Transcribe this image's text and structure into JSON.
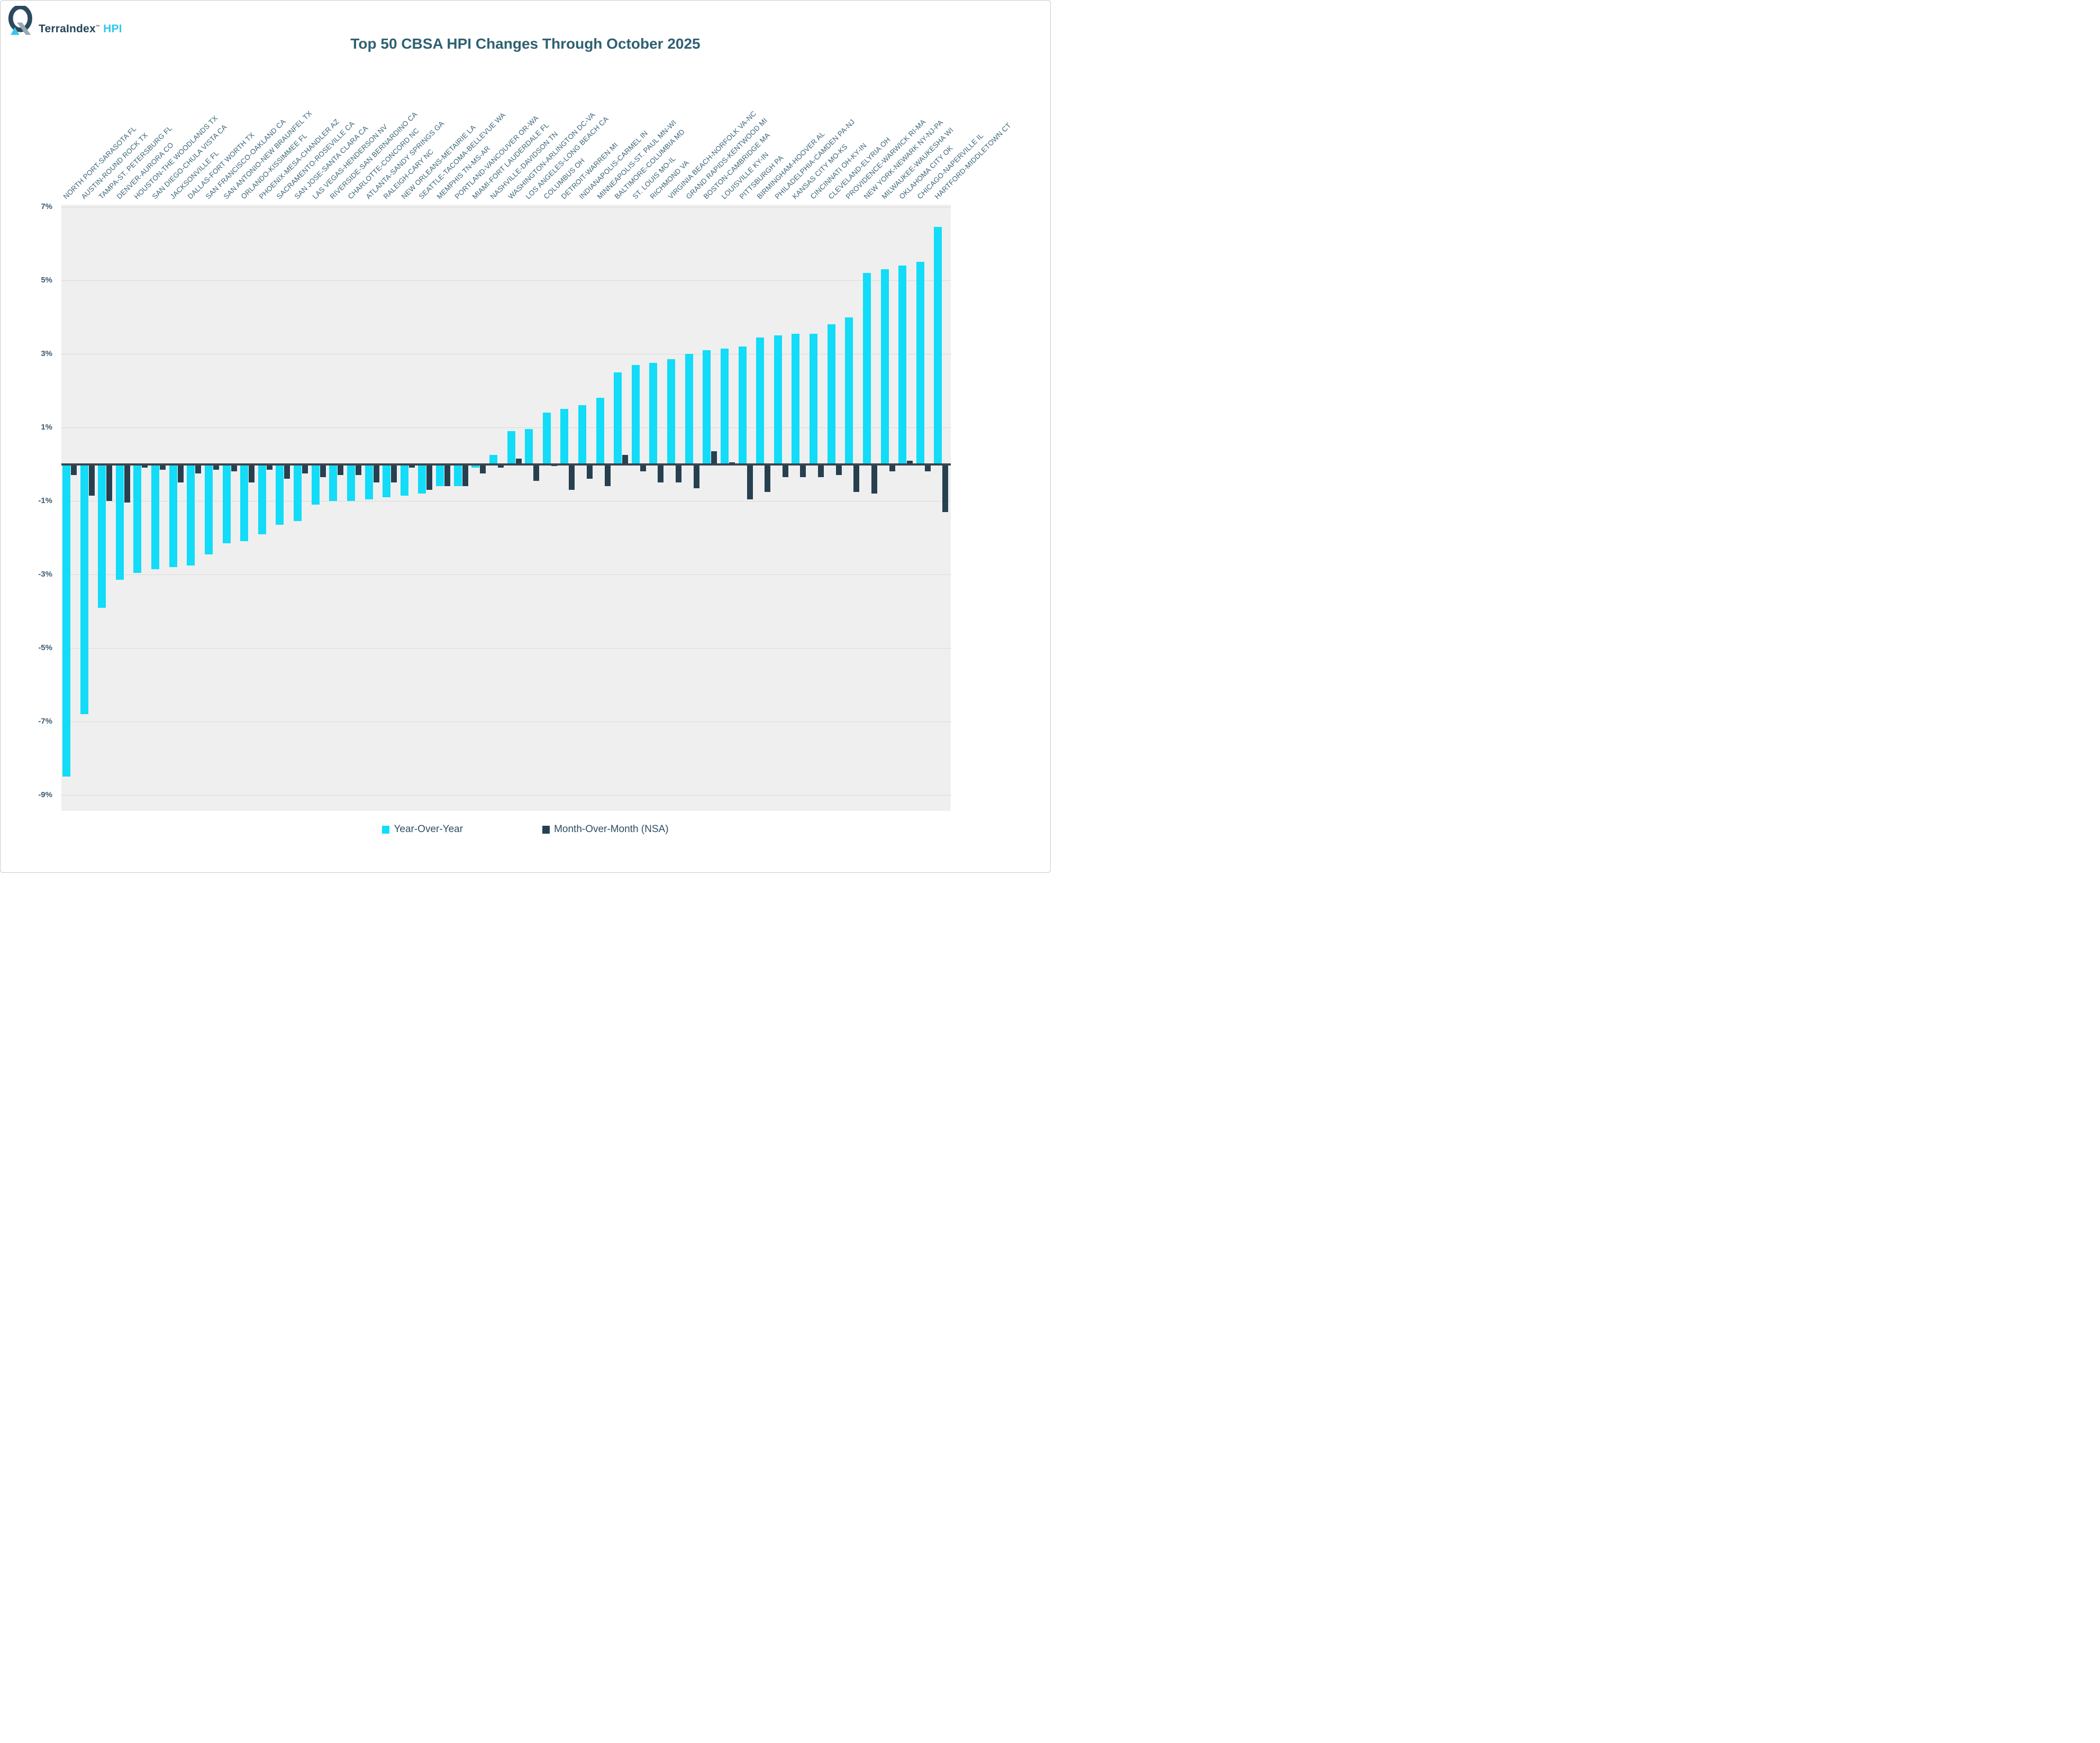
{
  "logo": {
    "brand": "TerraIndex",
    "tm": "TM",
    "suffix": "HPI",
    "icon": "q-triangle-logo",
    "colors": {
      "q": "#2c4a5e",
      "slash": "#98a9b4",
      "triangle": "#35c8ec",
      "text": "#24455a",
      "hpi": "#2ec8f0"
    }
  },
  "title": "Top 50 CBSA HPI Changes Through October 2025",
  "legend": {
    "items": [
      {
        "label": "Year-Over-Year",
        "color": "#12dcf8"
      },
      {
        "label": "Month-Over-Month (NSA)",
        "color": "#264050"
      }
    ]
  },
  "chart_data": {
    "type": "bar",
    "title": "Top 50 CBSA HPI Changes Through October 2025",
    "xlabel": "",
    "ylabel": "",
    "ylim": [
      -9,
      7
    ],
    "yticks": [
      7,
      5,
      3,
      1,
      -1,
      -3,
      -5,
      -7,
      -9
    ],
    "grid": true,
    "legend_position": "bottom",
    "categories": [
      "NORTH PORT-SARASOTA FL",
      "AUSTIN-ROUND ROCK TX",
      "TAMPA-ST. PETERSBURG FL",
      "DENVER-AURORA CO",
      "HOUSTON-THE WOODLANDS TX",
      "SAN DIEGO-CHULA VISTA CA",
      "JACKSONVILLE FL",
      "DALLAS-FORT WORTH TX",
      "SAN FRANCISCO-OAKLAND CA",
      "SAN ANTONIO-NEW BRAUNFEL TX",
      "ORLANDO-KISSIMMEE FL",
      "PHOENIX-MESA-CHANDLER AZ",
      "SACRAMENTO-ROSEVILLE CA",
      "SAN JOSE-SANTA CLARA CA",
      "LAS VEGAS-HENDERSON NV",
      "RIVERSIDE-SAN BERNARDINO CA",
      "CHARLOTTE-CONCORD NC",
      "ATLANTA-SANDY SPRINGS GA",
      "RALEIGH-CARY NC",
      "NEW ORLEANS-METAIRIE LA",
      "SEATTLE-TACOMA-BELLEVUE WA",
      "MEMPHIS TN-MS-AR",
      "PORTLAND-VANCOUVER OR-WA",
      "MIAMI-FORT LAUDERDALE FL",
      "NASHVILLE-DAVIDSON TN",
      "WASHINGTON-ARLINGTON DC-VA",
      "LOS ANGELES-LONG BEACH CA",
      "COLUMBUS OH",
      "DETROIT-WARREN MI",
      "INDIANAPOLIS-CARMEL IN",
      "MINNEAPOLIS-ST. PAUL MN-WI",
      "BALTIMORE-COLUMBIA MD",
      "ST. LOUIS MO-IL",
      "RICHMOND VA",
      "VIRGINIA BEACH-NORFOLK VA-NC",
      "GRAND RAPIDS-KENTWOOD MI",
      "BOSTON-CAMBRIDGE MA",
      "LOUISVILLE KY-IN",
      "PITTSBURGH PA",
      "BIRMINGHAM-HOOVER AL",
      "PHILADELPHIA-CAMDEN PA-NJ",
      "KANSAS CITY MO-KS",
      "CINCINNATI OH-KY-IN",
      "CLEVELAND-ELYRIA OH",
      "PROVIDENCE-WARWICK RI-MA",
      "NEW YORK-NEWARK NY-NJ-PA",
      "MILWAUKEE-WAUKESHA WI",
      "OKLAHOMA CITY OK",
      "CHICAGO-NAPERVILLE IL",
      "HARTFORD-MIDDLETOWN CT"
    ],
    "series": [
      {
        "name": "Year-Over-Year",
        "color": "#12dcf8",
        "values": [
          -8.5,
          -6.8,
          -3.9,
          -3.15,
          -2.95,
          -2.85,
          -2.8,
          -2.75,
          -2.45,
          -2.15,
          -2.1,
          -1.9,
          -1.65,
          -1.55,
          -1.1,
          -1.0,
          -1.0,
          -0.95,
          -0.9,
          -0.85,
          -0.8,
          -0.6,
          -0.6,
          -0.1,
          0.25,
          0.9,
          0.95,
          1.4,
          1.5,
          1.6,
          1.8,
          2.5,
          2.7,
          2.75,
          2.85,
          3.0,
          3.1,
          3.15,
          3.2,
          3.45,
          3.5,
          3.55,
          3.55,
          3.8,
          4.0,
          5.2,
          5.3,
          5.4,
          5.5,
          6.45
        ]
      },
      {
        "name": "Month-Over-Month (NSA)",
        "color": "#264050",
        "values": [
          -0.3,
          -0.85,
          -1.0,
          -1.05,
          -0.1,
          -0.15,
          -0.5,
          -0.25,
          -0.15,
          -0.2,
          -0.5,
          -0.15,
          -0.4,
          -0.25,
          -0.35,
          -0.3,
          -0.3,
          -0.5,
          -0.5,
          -0.1,
          -0.7,
          -0.6,
          -0.6,
          -0.25,
          -0.1,
          0.15,
          -0.45,
          -0.05,
          -0.7,
          -0.4,
          -0.6,
          0.25,
          -0.2,
          -0.5,
          -0.5,
          -0.65,
          0.35,
          0.05,
          -0.95,
          -0.75,
          -0.35,
          -0.35,
          -0.35,
          -0.3,
          -0.75,
          -0.8,
          -0.2,
          0.1,
          -0.2,
          -1.3
        ]
      }
    ]
  }
}
